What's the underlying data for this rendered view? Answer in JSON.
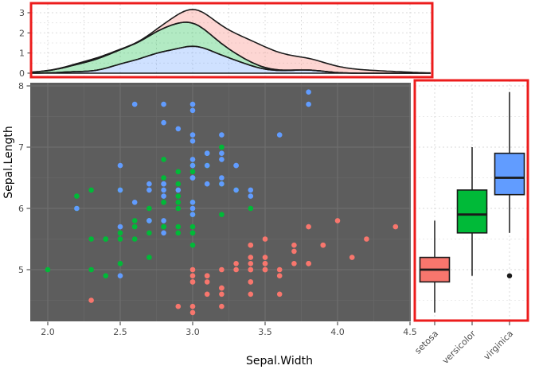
{
  "figure": {
    "description": "Composite iris plot: scatter of Sepal.Width vs Sepal.Length with top stacked-density marginal and right boxplot marginal, both outlined in red",
    "x_axis_title": "Sepal.Width",
    "y_axis_title": "Sepal.Length",
    "colors": {
      "setosa": "#F8766D",
      "versicolor": "#00BA38",
      "virginica": "#619CFF",
      "annotation_border": "#EC1C1C",
      "panel_dark_bg": "#5D5D5D",
      "grid_dark_major": "#6E6E6E",
      "grid_dark_minor": "#676767",
      "grid_light": "#D8D8D8",
      "outline_black": "#1A1A1A",
      "tick_text": "#4d4d4d"
    }
  },
  "chart_data": [
    {
      "type": "area",
      "subtype": "stacked-density",
      "position": "top-marginal",
      "title": "",
      "xlabel": "",
      "ylabel": "",
      "yticks": [
        "0",
        "1",
        "2",
        "3"
      ],
      "ylim": [
        0,
        3.4
      ],
      "xlim": [
        1.879,
        4.65
      ],
      "grid": "light-dashed",
      "legend": "none",
      "stack_order_bottom_to_top": [
        "virginica",
        "versicolor",
        "setosa"
      ],
      "computed_from": "kde of scatter series x values, gaussian, bw.nrd0",
      "fill_alpha": 0.3,
      "outline_color": "#1A1A1A"
    },
    {
      "type": "scatter",
      "position": "main",
      "title": "",
      "xlabel": "Sepal.Width",
      "ylabel": "Sepal.Length",
      "xticks": [
        "2.0",
        "2.5",
        "3.0",
        "3.5",
        "4.0",
        "4.5"
      ],
      "yticks": [
        "5",
        "6",
        "7",
        "8"
      ],
      "xlim": [
        1.879,
        4.51
      ],
      "ylim": [
        4.16,
        8.06
      ],
      "grid": "dark-panel",
      "legend": "none",
      "series": [
        {
          "name": "setosa",
          "color": "#F8766D",
          "x": [
            3.5,
            3.0,
            3.2,
            3.1,
            3.6,
            3.9,
            3.4,
            3.4,
            2.9,
            3.1,
            3.7,
            3.4,
            3.0,
            3.0,
            4.0,
            4.4,
            3.9,
            3.5,
            3.8,
            3.8,
            3.4,
            3.7,
            3.6,
            3.3,
            3.4,
            3.0,
            3.4,
            3.5,
            3.4,
            3.2,
            3.1,
            3.4,
            4.1,
            4.2,
            3.1,
            3.2,
            3.5,
            3.6,
            3.0,
            3.4,
            3.5,
            2.3,
            3.2,
            3.5,
            3.8,
            3.0,
            3.8,
            3.2,
            3.7,
            3.3
          ],
          "y": [
            5.1,
            4.9,
            4.7,
            4.6,
            5.0,
            5.4,
            4.6,
            5.0,
            4.4,
            4.9,
            5.4,
            4.8,
            4.8,
            4.3,
            5.8,
            5.7,
            5.4,
            5.1,
            5.7,
            5.1,
            5.4,
            5.1,
            4.6,
            5.1,
            4.8,
            5.0,
            5.0,
            5.2,
            5.2,
            4.7,
            4.8,
            5.4,
            5.2,
            5.5,
            4.9,
            5.0,
            5.5,
            4.9,
            4.4,
            5.1,
            5.0,
            4.5,
            4.4,
            5.0,
            5.1,
            4.8,
            5.1,
            4.6,
            5.3,
            5.0
          ]
        },
        {
          "name": "versicolor",
          "color": "#00BA38",
          "x": [
            3.2,
            3.2,
            3.1,
            2.3,
            2.8,
            2.8,
            3.3,
            2.4,
            2.9,
            2.7,
            2.0,
            3.0,
            2.2,
            2.9,
            2.9,
            3.1,
            3.0,
            2.7,
            2.2,
            2.5,
            3.2,
            2.8,
            2.5,
            2.8,
            2.9,
            3.0,
            2.8,
            3.0,
            2.9,
            2.6,
            2.4,
            2.4,
            2.7,
            2.7,
            3.0,
            3.4,
            3.1,
            2.3,
            3.0,
            2.5,
            2.6,
            3.0,
            2.6,
            2.3,
            2.7,
            3.0,
            2.9,
            2.9,
            2.5,
            2.8
          ],
          "y": [
            7.0,
            6.4,
            6.9,
            5.5,
            6.5,
            5.7,
            6.3,
            4.9,
            6.6,
            5.2,
            5.0,
            5.9,
            6.0,
            6.1,
            5.6,
            6.7,
            5.6,
            5.8,
            6.2,
            5.6,
            5.9,
            6.1,
            6.3,
            6.1,
            6.4,
            6.6,
            6.8,
            6.7,
            6.0,
            5.7,
            5.5,
            5.5,
            5.8,
            6.0,
            5.4,
            6.0,
            6.7,
            6.3,
            5.6,
            5.5,
            5.5,
            6.1,
            5.8,
            5.0,
            5.6,
            5.7,
            5.7,
            6.2,
            5.1,
            5.7
          ]
        },
        {
          "name": "virginica",
          "color": "#619CFF",
          "x": [
            3.3,
            2.7,
            3.0,
            2.9,
            3.0,
            3.0,
            2.5,
            2.9,
            2.5,
            3.6,
            3.2,
            2.7,
            3.0,
            2.5,
            2.8,
            3.2,
            3.0,
            3.8,
            2.6,
            2.2,
            3.2,
            2.8,
            2.8,
            2.7,
            3.3,
            3.2,
            2.8,
            3.0,
            2.8,
            3.0,
            2.8,
            3.8,
            2.8,
            2.8,
            2.6,
            3.0,
            3.4,
            3.1,
            3.0,
            3.1,
            3.1,
            3.1,
            2.7,
            3.2,
            3.3,
            3.0,
            2.5,
            3.0,
            3.4,
            3.0
          ],
          "y": [
            6.3,
            5.8,
            7.1,
            6.3,
            6.5,
            7.6,
            4.9,
            7.3,
            6.7,
            7.2,
            6.5,
            6.4,
            6.8,
            5.7,
            5.8,
            6.4,
            6.5,
            7.7,
            7.7,
            6.0,
            6.9,
            5.6,
            7.7,
            6.3,
            6.7,
            7.2,
            6.2,
            6.1,
            6.4,
            7.2,
            7.4,
            7.9,
            6.4,
            6.3,
            6.1,
            7.7,
            6.3,
            6.4,
            6.0,
            6.9,
            6.7,
            6.9,
            5.8,
            6.8,
            6.7,
            6.7,
            6.3,
            6.5,
            6.2,
            5.9
          ]
        }
      ]
    },
    {
      "type": "boxplot",
      "position": "right-marginal",
      "title": "",
      "xlabel": "",
      "ylabel": "",
      "categories": [
        "setosa",
        "versicolor",
        "virginica"
      ],
      "category_label_angle": 45,
      "ylim": [
        4.16,
        8.06
      ],
      "grid": "light-dashed",
      "value_variable": "Sepal.Length",
      "stats": [
        {
          "name": "setosa",
          "color": "#F8766D",
          "whisker_low": 4.3,
          "q1": 4.8,
          "median": 5.0,
          "q3": 5.2,
          "whisker_high": 5.8,
          "outliers": []
        },
        {
          "name": "versicolor",
          "color": "#00BA38",
          "whisker_low": 4.9,
          "q1": 5.6,
          "median": 5.9,
          "q3": 6.3,
          "whisker_high": 7.0,
          "outliers": []
        },
        {
          "name": "virginica",
          "color": "#619CFF",
          "whisker_low": 5.6,
          "q1": 6.225,
          "median": 6.5,
          "q3": 6.9,
          "whisker_high": 7.9,
          "outliers": [
            4.9
          ]
        }
      ]
    }
  ]
}
